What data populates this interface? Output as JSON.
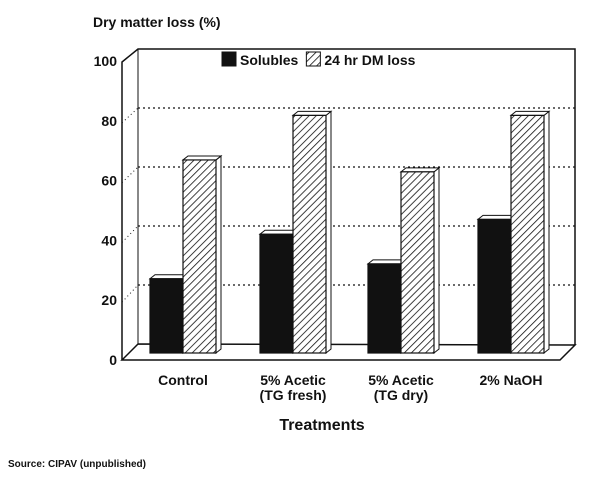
{
  "chart_data": {
    "type": "bar",
    "style": "3d-clustered",
    "ylabel": "Dry matter loss (%)",
    "xlabel": "Treatments",
    "ylim": [
      0,
      100
    ],
    "yticks": [
      "0",
      "20",
      "40",
      "60",
      "80",
      "100"
    ],
    "grid": true,
    "legend_placement": "top-center",
    "categories": [
      [
        "Control"
      ],
      [
        "5% Acetic",
        "(TG fresh)"
      ],
      [
        "5% Acetic",
        "(TG dry)"
      ],
      [
        "2% NaOH"
      ]
    ],
    "series": [
      {
        "name": "Solubles",
        "values": [
          25,
          40,
          30,
          45
        ],
        "fill": "solid",
        "color": "#111111"
      },
      {
        "name": "24 hr DM loss",
        "values": [
          65,
          80,
          61,
          80
        ],
        "fill": "hatched",
        "color": "#111111"
      }
    ],
    "source": "Source: CIPAV (unpublished)"
  }
}
